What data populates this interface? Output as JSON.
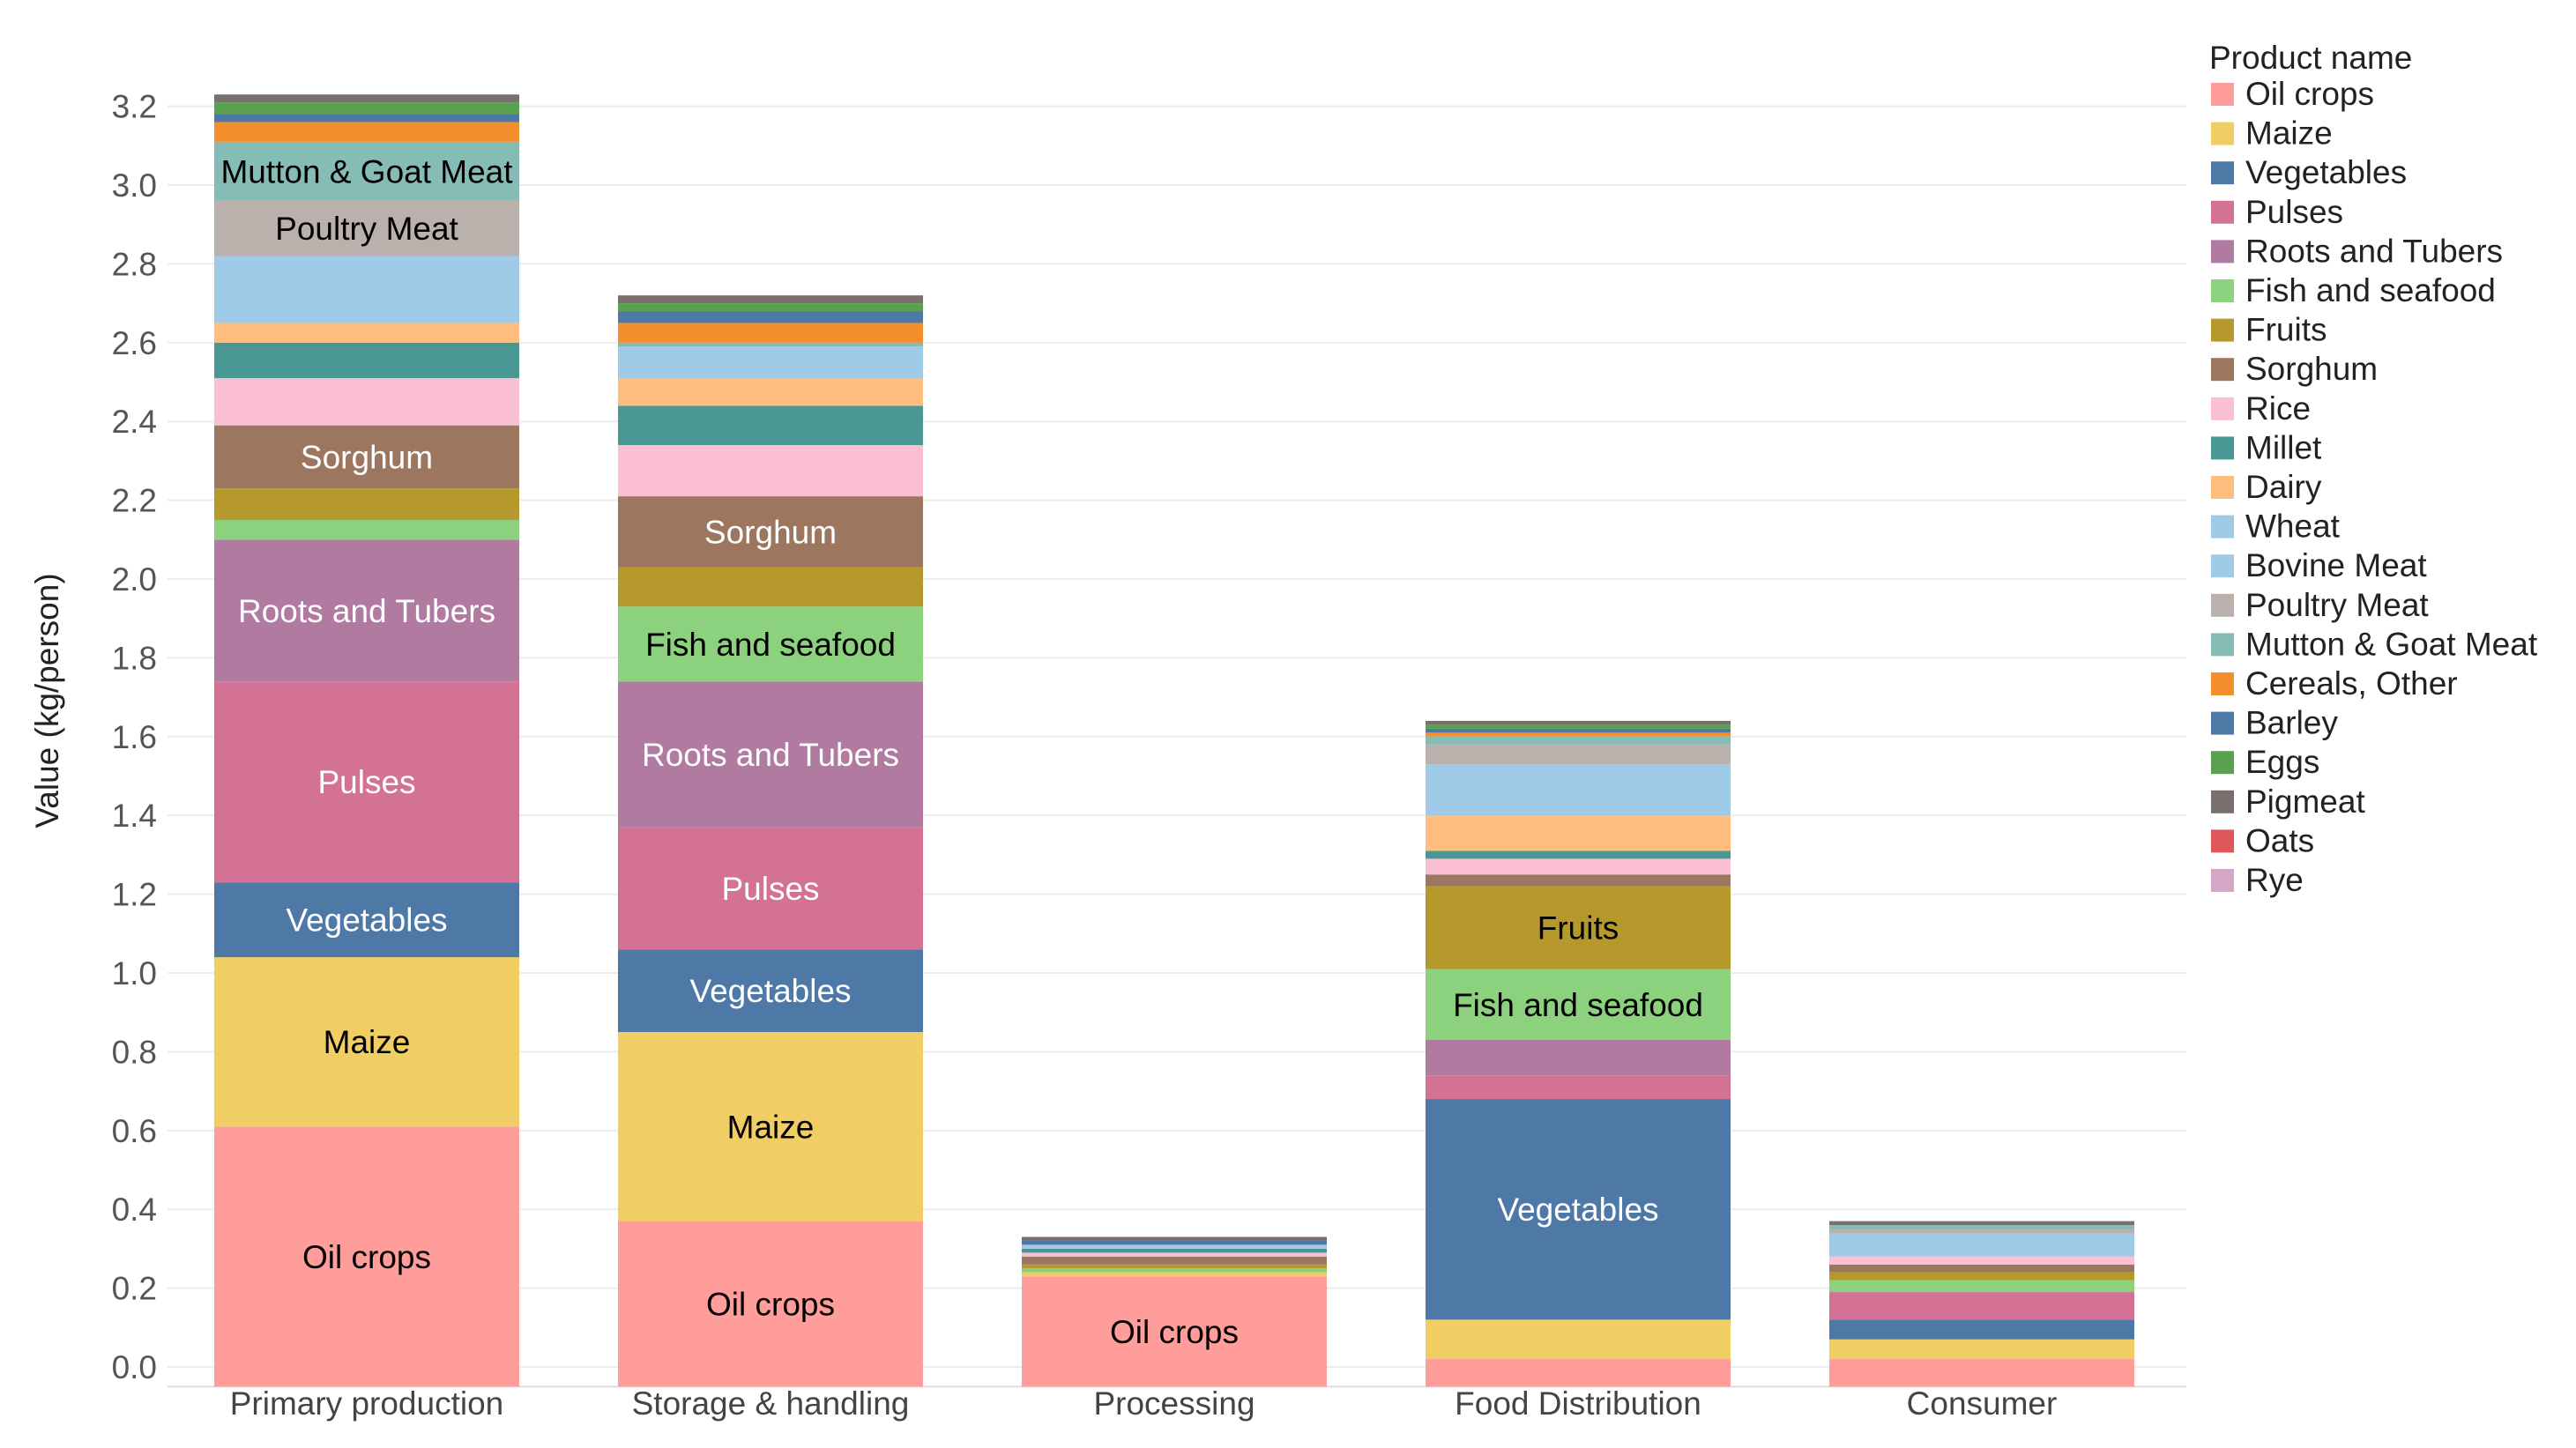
{
  "chart_data": {
    "type": "bar",
    "stacked": true,
    "title": "",
    "ylabel": "Value (kg/person)",
    "xlabel": "",
    "ylim": [
      -0.05,
      3.32
    ],
    "yticks": [
      0.0,
      0.2,
      0.4,
      0.6,
      0.8,
      1.0,
      1.2,
      1.4,
      1.6,
      1.8,
      2.0,
      2.2,
      2.4,
      2.6,
      2.8,
      3.0,
      3.2
    ],
    "ytick_labels": [
      "0.0",
      "0.2",
      "0.4",
      "0.6",
      "0.8",
      "1.0",
      "1.2",
      "1.4",
      "1.6",
      "1.8",
      "2.0",
      "2.2",
      "2.4",
      "2.6",
      "2.8",
      "3.0",
      "3.2"
    ],
    "grid": true,
    "legend_title": "Product name",
    "legend_position": "right",
    "categories": [
      "Primary production",
      "Storage & handling",
      "Processing",
      "Food Distribution",
      "Consumer"
    ],
    "series": [
      {
        "name": "Oil crops",
        "color": "#FF9D9A",
        "label_color": "#000000",
        "values": [
          0.61,
          0.37,
          0.23,
          0.02,
          0.02
        ],
        "show_label": [
          true,
          true,
          true,
          false,
          false
        ]
      },
      {
        "name": "Maize",
        "color": "#F1CE63",
        "label_color": "#000000",
        "values": [
          0.43,
          0.48,
          0.01,
          0.1,
          0.05
        ],
        "show_label": [
          true,
          true,
          false,
          false,
          false
        ]
      },
      {
        "name": "Vegetables",
        "color": "#4E79A7",
        "label_color": "#FFFFFF",
        "values": [
          0.19,
          0.21,
          0.0,
          0.56,
          0.05
        ],
        "show_label": [
          true,
          true,
          false,
          true,
          false
        ]
      },
      {
        "name": "Pulses",
        "color": "#D37295",
        "label_color": "#FFFFFF",
        "values": [
          0.51,
          0.31,
          0.0,
          0.06,
          0.07
        ],
        "show_label": [
          true,
          true,
          false,
          false,
          false
        ]
      },
      {
        "name": "Roots and Tubers",
        "color": "#B07AA1",
        "label_color": "#FFFFFF",
        "values": [
          0.36,
          0.37,
          0.0,
          0.09,
          0.0
        ],
        "show_label": [
          true,
          true,
          false,
          false,
          false
        ]
      },
      {
        "name": "Fish and seafood",
        "color": "#8CD17D",
        "label_color": "#000000",
        "values": [
          0.05,
          0.19,
          0.01,
          0.18,
          0.03
        ],
        "show_label": [
          false,
          true,
          false,
          true,
          false
        ]
      },
      {
        "name": "Fruits",
        "color": "#B6992D",
        "label_color": "#000000",
        "values": [
          0.08,
          0.1,
          0.01,
          0.21,
          0.02
        ],
        "show_label": [
          false,
          false,
          false,
          true,
          false
        ]
      },
      {
        "name": "Sorghum",
        "color": "#9D7660",
        "label_color": "#FFFFFF",
        "values": [
          0.16,
          0.18,
          0.02,
          0.03,
          0.02
        ],
        "show_label": [
          true,
          true,
          false,
          false,
          false
        ]
      },
      {
        "name": "Rice",
        "color": "#FABFD2",
        "label_color": "#000000",
        "values": [
          0.12,
          0.13,
          0.01,
          0.04,
          0.02
        ],
        "show_label": [
          false,
          false,
          false,
          false,
          false
        ]
      },
      {
        "name": "Millet",
        "color": "#499894",
        "label_color": "#000000",
        "values": [
          0.09,
          0.1,
          0.01,
          0.02,
          0.0
        ],
        "show_label": [
          false,
          false,
          false,
          false,
          false
        ]
      },
      {
        "name": "Dairy",
        "color": "#FFBE7D",
        "label_color": "#000000",
        "values": [
          0.05,
          0.07,
          0.0,
          0.09,
          0.0
        ],
        "show_label": [
          false,
          false,
          false,
          false,
          false
        ]
      },
      {
        "name": "Wheat",
        "color": "#A0CBE8",
        "label_color": "#000000",
        "values": [
          0.0,
          0.0,
          0.0,
          0.0,
          0.06
        ],
        "show_label": [
          false,
          false,
          false,
          false,
          false
        ]
      },
      {
        "name": "Bovine Meat",
        "color": "#A0CBE8",
        "label_color": "#000000",
        "values": [
          0.17,
          0.08,
          0.01,
          0.13,
          0.0
        ],
        "show_label": [
          false,
          false,
          false,
          false,
          false
        ]
      },
      {
        "name": "Poultry Meat",
        "color": "#BAB0AC",
        "label_color": "#000000",
        "values": [
          0.14,
          0.0,
          0.0,
          0.05,
          0.01
        ],
        "show_label": [
          true,
          false,
          false,
          false,
          false
        ]
      },
      {
        "name": "Mutton & Goat Meat",
        "color": "#86BCB6",
        "label_color": "#000000",
        "values": [
          0.15,
          0.01,
          0.0,
          0.02,
          0.01
        ],
        "show_label": [
          true,
          false,
          false,
          false,
          false
        ]
      },
      {
        "name": "Cereals, Other",
        "color": "#F28E2B",
        "label_color": "#000000",
        "values": [
          0.05,
          0.05,
          0.0,
          0.01,
          0.0
        ],
        "show_label": [
          false,
          false,
          false,
          false,
          false
        ]
      },
      {
        "name": "Barley",
        "color": "#4E79A7",
        "label_color": "#FFFFFF",
        "values": [
          0.02,
          0.03,
          0.01,
          0.01,
          0.0
        ],
        "show_label": [
          false,
          false,
          false,
          false,
          false
        ]
      },
      {
        "name": "Eggs",
        "color": "#59A14F",
        "label_color": "#000000",
        "values": [
          0.03,
          0.02,
          0.0,
          0.01,
          0.0
        ],
        "show_label": [
          false,
          false,
          false,
          false,
          false
        ]
      },
      {
        "name": "Pigmeat",
        "color": "#79706E",
        "label_color": "#FFFFFF",
        "values": [
          0.02,
          0.02,
          0.01,
          0.01,
          0.01
        ],
        "show_label": [
          false,
          false,
          false,
          false,
          false
        ]
      },
      {
        "name": "Oats",
        "color": "#E15759",
        "label_color": "#FFFFFF",
        "values": [
          0.0,
          0.0,
          0.0,
          0.0,
          0.0
        ],
        "show_label": [
          false,
          false,
          false,
          false,
          false
        ]
      },
      {
        "name": "Rye",
        "color": "#D4A6C8",
        "label_color": "#000000",
        "values": [
          0.0,
          0.0,
          0.0,
          0.0,
          0.0
        ],
        "show_label": [
          false,
          false,
          false,
          false,
          false
        ]
      }
    ]
  }
}
